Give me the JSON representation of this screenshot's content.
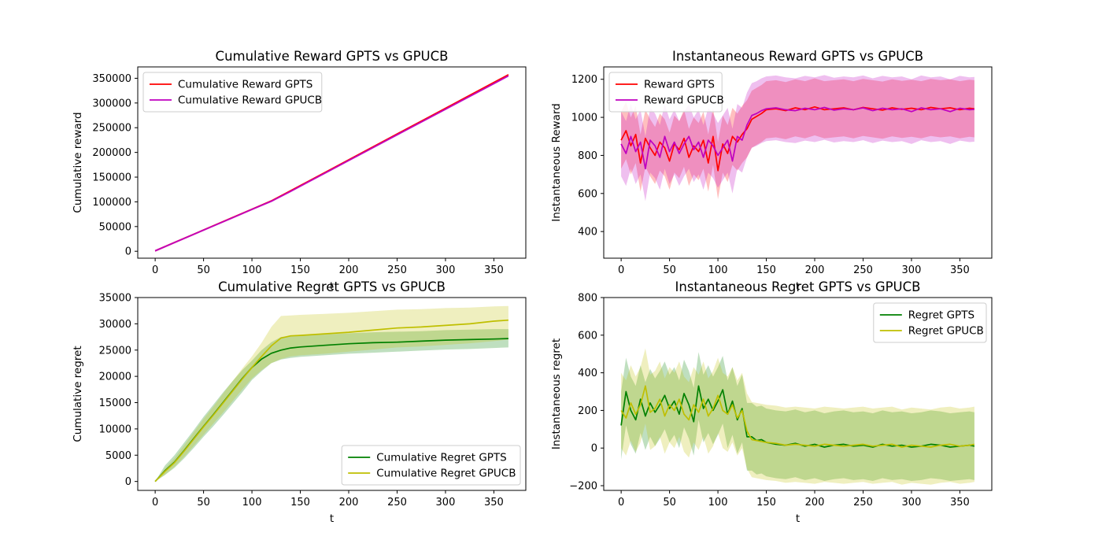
{
  "figure": {
    "background": "#ffffff"
  },
  "chart_data": [
    {
      "id": "cum_reward",
      "type": "line",
      "title": "Cumulative Reward GPTS vs GPUCB",
      "xlabel": "t",
      "ylabel": "Cumulative reward",
      "xlim": [
        -18,
        383
      ],
      "ylim": [
        -14000,
        373000
      ],
      "xticks": [
        0,
        50,
        100,
        150,
        200,
        250,
        300,
        350
      ],
      "yticks": [
        0,
        50000,
        100000,
        150000,
        200000,
        250000,
        300000,
        350000
      ],
      "legend": "top-left",
      "series": [
        {
          "name": "Cumulative Reward GPTS",
          "color": "#ff0000",
          "x": [
            0,
            20,
            40,
            60,
            80,
            100,
            120,
            140,
            160,
            180,
            200,
            220,
            240,
            260,
            280,
            300,
            320,
            340,
            365
          ],
          "y": [
            850,
            17800,
            34600,
            51500,
            68300,
            85000,
            102000,
            122500,
            143400,
            164200,
            185100,
            206000,
            226900,
            247800,
            268600,
            289400,
            310300,
            331200,
            357300
          ],
          "band": 1800
        },
        {
          "name": "Cumulative Reward GPUCB",
          "color": "#bf00bf",
          "x": [
            0,
            20,
            40,
            60,
            80,
            100,
            120,
            140,
            160,
            180,
            200,
            220,
            240,
            260,
            280,
            300,
            320,
            340,
            365
          ],
          "y": [
            850,
            17700,
            34400,
            51200,
            67900,
            84700,
            101200,
            121200,
            142000,
            162800,
            183600,
            204400,
            225200,
            246000,
            266800,
            287500,
            308200,
            328900,
            354800
          ],
          "band": 2200
        }
      ]
    },
    {
      "id": "inst_reward",
      "type": "line",
      "title": "Instantaneous Reward GPTS vs GPUCB",
      "xlabel": "t",
      "ylabel": "Instantaneous Reward",
      "xlim": [
        -18,
        383
      ],
      "ylim": [
        260,
        1265
      ],
      "xticks": [
        0,
        50,
        100,
        150,
        200,
        250,
        300,
        350
      ],
      "yticks": [
        400,
        600,
        800,
        1000,
        1200
      ],
      "legend": "top-left",
      "series": [
        {
          "name": "Reward GPTS",
          "color": "#ff0000",
          "x": [
            0,
            5,
            10,
            15,
            20,
            25,
            30,
            35,
            40,
            45,
            50,
            55,
            60,
            65,
            70,
            75,
            80,
            85,
            90,
            95,
            100,
            105,
            110,
            115,
            120,
            125,
            130,
            135,
            140,
            145,
            150,
            160,
            170,
            180,
            190,
            200,
            210,
            220,
            230,
            240,
            250,
            260,
            270,
            280,
            290,
            300,
            310,
            320,
            330,
            340,
            350,
            360,
            365
          ],
          "y": [
            880,
            930,
            850,
            910,
            760,
            890,
            840,
            800,
            870,
            840,
            770,
            860,
            830,
            890,
            790,
            850,
            820,
            880,
            760,
            900,
            720,
            860,
            810,
            900,
            870,
            910,
            940,
            990,
            1005,
            1020,
            1040,
            1045,
            1035,
            1050,
            1040,
            1055,
            1040,
            1045,
            1050,
            1040,
            1052,
            1045,
            1038,
            1050,
            1042,
            1048,
            1040,
            1052,
            1045,
            1050,
            1040,
            1048,
            1045
          ],
          "band": 150
        },
        {
          "name": "Reward GPUCB",
          "color": "#bf00bf",
          "x": [
            0,
            5,
            10,
            15,
            20,
            25,
            30,
            35,
            40,
            45,
            50,
            55,
            60,
            65,
            70,
            75,
            80,
            85,
            90,
            95,
            100,
            105,
            110,
            115,
            120,
            125,
            130,
            135,
            140,
            145,
            150,
            160,
            170,
            180,
            190,
            200,
            210,
            220,
            230,
            240,
            250,
            260,
            270,
            280,
            290,
            300,
            310,
            320,
            330,
            340,
            350,
            360,
            365
          ],
          "y": [
            860,
            810,
            900,
            820,
            870,
            730,
            880,
            850,
            790,
            900,
            820,
            870,
            810,
            860,
            900,
            830,
            870,
            790,
            880,
            850,
            800,
            840,
            880,
            770,
            900,
            880,
            960,
            1010,
            1020,
            1035,
            1045,
            1050,
            1040,
            1035,
            1048,
            1040,
            1052,
            1038,
            1045,
            1040,
            1050,
            1035,
            1048,
            1040,
            1045,
            1030,
            1050,
            1040,
            1045,
            1030,
            1048,
            1040,
            1042
          ],
          "band": 170
        }
      ]
    },
    {
      "id": "cum_regret",
      "type": "line",
      "title": "Cumulative Regret GPTS vs GPUCB",
      "xlabel": "t",
      "ylabel": "Cumulative regret",
      "xlim": [
        -18,
        383
      ],
      "ylim": [
        -1700,
        35000
      ],
      "xticks": [
        0,
        50,
        100,
        150,
        200,
        250,
        300,
        350
      ],
      "yticks": [
        0,
        5000,
        10000,
        15000,
        20000,
        25000,
        30000,
        35000
      ],
      "legend": "bottom-right",
      "series": [
        {
          "name": "Cumulative Regret GPTS",
          "color": "#008000",
          "x": [
            0,
            10,
            20,
            30,
            40,
            50,
            60,
            70,
            80,
            90,
            100,
            110,
            120,
            130,
            140,
            150,
            175,
            200,
            225,
            250,
            275,
            300,
            325,
            350,
            365
          ],
          "y": [
            0,
            2000,
            3700,
            5900,
            8200,
            10500,
            12700,
            15000,
            17300,
            19600,
            21700,
            23300,
            24400,
            25000,
            25400,
            25600,
            25900,
            26200,
            26400,
            26500,
            26700,
            26900,
            27000,
            27100,
            27200
          ],
          "band_lo": [
            0,
            1200,
            2600,
            4400,
            6400,
            8500,
            10500,
            12600,
            14800,
            17000,
            19300,
            21000,
            22500,
            23200,
            23500,
            23700,
            24000,
            24300,
            24500,
            24700,
            24900,
            25100,
            25200,
            25400,
            25500
          ],
          "band_hi": [
            0,
            3000,
            5000,
            7400,
            9800,
            12300,
            14600,
            16900,
            19100,
            21200,
            23000,
            25000,
            26500,
            27500,
            27700,
            27800,
            28000,
            28200,
            28400,
            28500,
            28600,
            28800,
            28900,
            29000,
            29000
          ]
        },
        {
          "name": "Cumulative Regret GPUCB",
          "color": "#bfbf00",
          "x": [
            0,
            10,
            20,
            30,
            40,
            50,
            60,
            70,
            80,
            90,
            100,
            110,
            120,
            130,
            140,
            150,
            175,
            200,
            225,
            250,
            275,
            300,
            325,
            350,
            365
          ],
          "y": [
            0,
            1900,
            3600,
            5800,
            8100,
            10400,
            12600,
            14900,
            17200,
            19500,
            21700,
            23800,
            25800,
            27300,
            27700,
            27800,
            28100,
            28400,
            28800,
            29200,
            29400,
            29700,
            30000,
            30500,
            30700
          ],
          "band_lo": [
            0,
            1300,
            2800,
            4700,
            6800,
            8900,
            11000,
            13100,
            15300,
            17500,
            19600,
            21200,
            22500,
            23300,
            23800,
            24000,
            24300,
            24700,
            25100,
            25500,
            25700,
            26000,
            26300,
            26700,
            27000
          ],
          "band_hi": [
            0,
            2500,
            4400,
            6900,
            9400,
            11900,
            14200,
            16700,
            19100,
            21500,
            23800,
            26400,
            29400,
            31500,
            31600,
            31700,
            31900,
            32100,
            32400,
            32700,
            32800,
            33000,
            33100,
            33300,
            33400
          ]
        }
      ]
    },
    {
      "id": "inst_regret",
      "type": "line",
      "title": "Instantaneous Regret GPTS vs GPUCB",
      "xlabel": "t",
      "ylabel": "Instantaneous regret",
      "xlim": [
        -18,
        383
      ],
      "ylim": [
        -225,
        800
      ],
      "xticks": [
        0,
        50,
        100,
        150,
        200,
        250,
        300,
        350
      ],
      "yticks": [
        -200,
        0,
        200,
        400,
        600,
        800
      ],
      "legend": "top-right",
      "series": [
        {
          "name": "Regret GPTS",
          "color": "#008000",
          "x": [
            0,
            5,
            10,
            15,
            20,
            25,
            30,
            35,
            40,
            45,
            50,
            55,
            60,
            65,
            70,
            75,
            80,
            85,
            90,
            95,
            100,
            105,
            110,
            115,
            120,
            125,
            130,
            135,
            140,
            145,
            150,
            160,
            170,
            180,
            190,
            200,
            210,
            220,
            230,
            240,
            250,
            260,
            270,
            280,
            290,
            300,
            310,
            320,
            330,
            340,
            350,
            360,
            365
          ],
          "y": [
            120,
            300,
            200,
            150,
            260,
            170,
            240,
            190,
            230,
            280,
            210,
            250,
            180,
            290,
            230,
            140,
            330,
            210,
            260,
            200,
            250,
            310,
            180,
            250,
            150,
            210,
            60,
            60,
            40,
            45,
            30,
            20,
            15,
            25,
            10,
            20,
            5,
            15,
            20,
            10,
            15,
            5,
            20,
            10,
            15,
            5,
            10,
            20,
            15,
            5,
            10,
            15,
            10
          ],
          "band": 180
        },
        {
          "name": "Regret GPUCB",
          "color": "#bfbf00",
          "x": [
            0,
            5,
            10,
            15,
            20,
            25,
            30,
            35,
            40,
            45,
            50,
            55,
            60,
            65,
            70,
            75,
            80,
            85,
            90,
            95,
            100,
            105,
            110,
            115,
            120,
            125,
            130,
            135,
            140,
            145,
            150,
            160,
            170,
            180,
            190,
            200,
            210,
            220,
            230,
            240,
            250,
            260,
            270,
            280,
            290,
            300,
            310,
            320,
            330,
            340,
            350,
            360,
            365
          ],
          "y": [
            200,
            160,
            240,
            180,
            230,
            330,
            190,
            210,
            260,
            170,
            230,
            200,
            260,
            180,
            150,
            230,
            190,
            260,
            170,
            210,
            280,
            200,
            180,
            230,
            160,
            200,
            90,
            45,
            40,
            35,
            30,
            25,
            15,
            20,
            15,
            10,
            20,
            15,
            10,
            15,
            20,
            10,
            15,
            20,
            5,
            15,
            10,
            5,
            15,
            20,
            10,
            15,
            20
          ],
          "band": 200
        }
      ]
    }
  ]
}
